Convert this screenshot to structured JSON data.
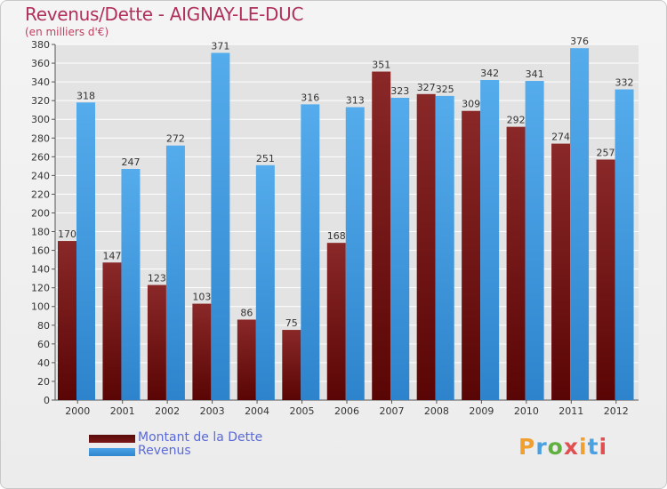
{
  "title": "Revenus/Dette - AIGNAY-LE-DUC",
  "subtitle": "(en milliers d'€)",
  "logo": "Proxiti",
  "colors": {
    "dette": "#7a1818",
    "revenus": "#4aa3e8",
    "grid": "#ffffff",
    "plot_bg": "#e3e3e3"
  },
  "chart_data": {
    "type": "bar",
    "categories": [
      "2000",
      "2001",
      "2002",
      "2003",
      "2004",
      "2005",
      "2006",
      "2007",
      "2008",
      "2009",
      "2010",
      "2011",
      "2012"
    ],
    "series": [
      {
        "name": "Montant de la Dette",
        "values": [
          170,
          147,
          123,
          103,
          86,
          75,
          168,
          351,
          327,
          309,
          292,
          274,
          257
        ]
      },
      {
        "name": "Revenus",
        "values": [
          318,
          247,
          272,
          371,
          251,
          316,
          313,
          323,
          325,
          342,
          341,
          376,
          332
        ]
      }
    ],
    "ylim": [
      0,
      380
    ],
    "ytick_step": 20,
    "grid": true,
    "legend_position": "bottom-left"
  }
}
